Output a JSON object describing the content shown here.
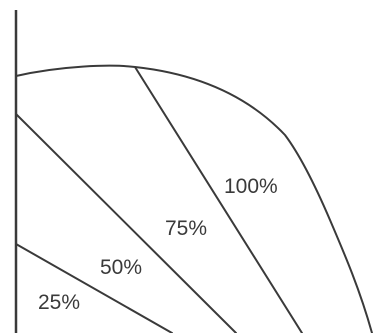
{
  "regions": [
    {
      "label": "25%"
    },
    {
      "label": "50%"
    },
    {
      "label": "75%"
    },
    {
      "label": "100%"
    }
  ],
  "colors": {
    "line": "#3a3a3a",
    "background": "#ffffff"
  }
}
